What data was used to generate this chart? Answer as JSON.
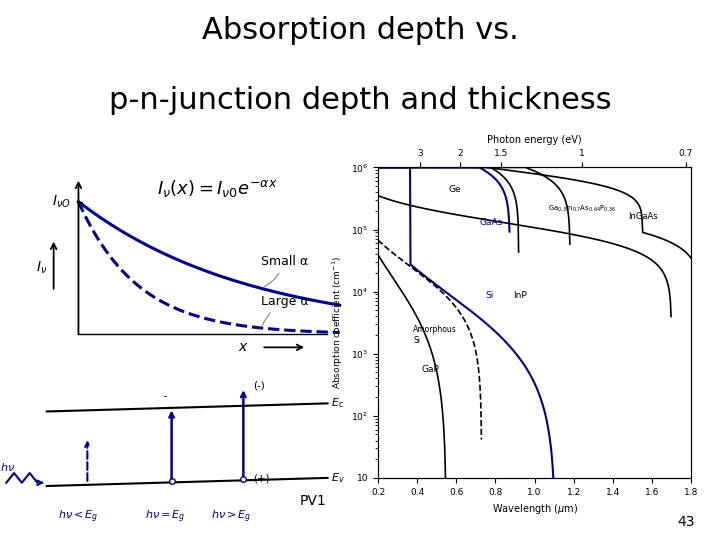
{
  "title_line1": "Absorption depth vs.",
  "title_line2": "p-n-junction depth and thickness",
  "title_fontsize": 22,
  "curve_color": "#00008B",
  "background_color": "#ffffff",
  "slide_label": "PV1",
  "slide_number": "43",
  "small_alpha_label": "Small α",
  "large_alpha_label": "Large α"
}
